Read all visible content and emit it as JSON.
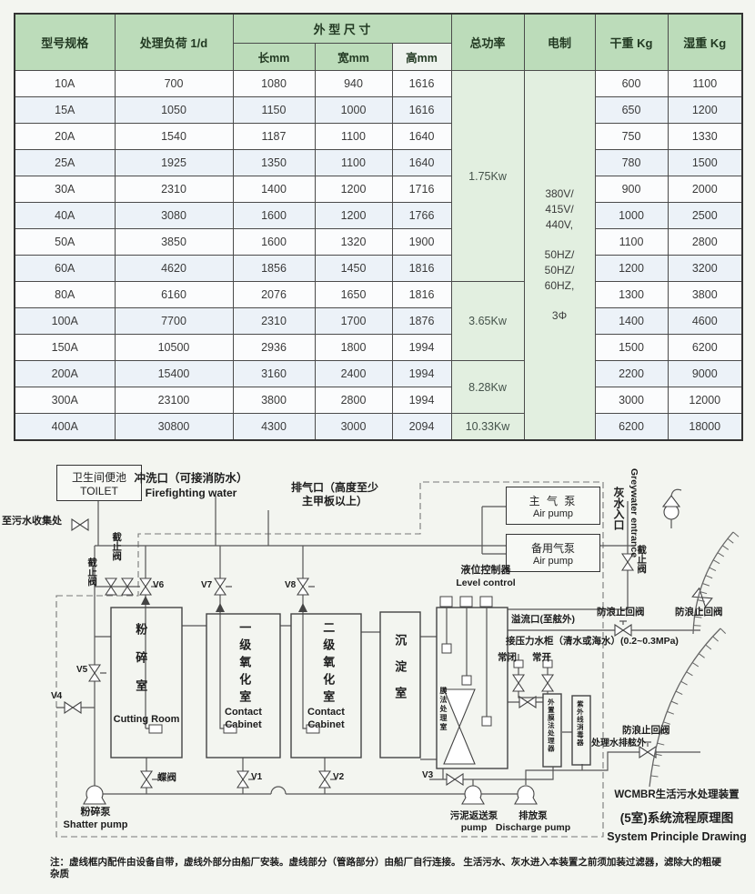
{
  "table": {
    "headers": {
      "model": "型号规格",
      "load": "处理负荷 1/d",
      "dims": "外 型 尺 寸",
      "len": "长mm",
      "wid": "宽mm",
      "hei": "高mm",
      "power": "总功率",
      "electric": "电制",
      "dry": "干重 Kg",
      "wet": "湿重 Kg"
    },
    "electric_text": "380V/\n415V/\n440V,\n\n50HZ/\n50HZ/\n60HZ,\n\n3Φ",
    "power_groups": [
      {
        "label": "1.75Kw",
        "rows": 8
      },
      {
        "label": "3.65Kw",
        "rows": 3
      },
      {
        "label": "8.28Kw",
        "rows": 2
      },
      {
        "label": "10.33Kw",
        "rows": 1
      }
    ],
    "rows": [
      [
        "10A",
        "700",
        "1080",
        "940",
        "1616",
        "600",
        "1100"
      ],
      [
        "15A",
        "1050",
        "1150",
        "1000",
        "1616",
        "650",
        "1200"
      ],
      [
        "20A",
        "1540",
        "1187",
        "1100",
        "1640",
        "750",
        "1330"
      ],
      [
        "25A",
        "1925",
        "1350",
        "1100",
        "1640",
        "780",
        "1500"
      ],
      [
        "30A",
        "2310",
        "1400",
        "1200",
        "1716",
        "900",
        "2000"
      ],
      [
        "40A",
        "3080",
        "1600",
        "1200",
        "1766",
        "1000",
        "2500"
      ],
      [
        "50A",
        "3850",
        "1600",
        "1320",
        "1900",
        "1100",
        "2800"
      ],
      [
        "60A",
        "4620",
        "1856",
        "1450",
        "1816",
        "1200",
        "3200"
      ],
      [
        "80A",
        "6160",
        "2076",
        "1650",
        "1816",
        "1300",
        "3800"
      ],
      [
        "100A",
        "7700",
        "2310",
        "1700",
        "1876",
        "1400",
        "4600"
      ],
      [
        "150A",
        "10500",
        "2936",
        "1800",
        "1994",
        "1500",
        "6200"
      ],
      [
        "200A",
        "15400",
        "3160",
        "2400",
        "1994",
        "2200",
        "9000"
      ],
      [
        "300A",
        "23100",
        "3800",
        "2800",
        "1994",
        "3000",
        "12000"
      ],
      [
        "400A",
        "30800",
        "4300",
        "3000",
        "2094",
        "6200",
        "18000"
      ]
    ]
  },
  "diagram": {
    "toilet_cn": "卫生间便池",
    "toilet_en": "TOILET",
    "firefighting_cn": "冲洗口（可接消防水）",
    "firefighting_en": "Firefighting water",
    "exhaust_l1": "排气口（高度至少",
    "exhaust_l2": "主甲板以上）",
    "air_main_cn": "主 气 泵",
    "air_main_en": "Air pump",
    "air_backup_cn": "备用气泵",
    "air_backup_en": "Air pump",
    "greywater_cn": "灰水入口",
    "greywater_en": "Greywater entrance",
    "sewage_cn": "至污水收集处",
    "stop_valve": "截止阀",
    "v1": "V1",
    "v2": "V2",
    "v3": "V3",
    "v4": "V4",
    "v5": "V5",
    "v6": "V6",
    "v7": "V7",
    "v8": "V8",
    "butterfly": "蝶阀",
    "tank1_cn": "粉碎室",
    "tank1_en": "Cutting Room",
    "tank2_cn": "一级氧化室",
    "tank2_en": "Contact Cabinet",
    "tank3_cn": "二级氧化室",
    "tank3_en": "Contact Cabinet",
    "tank4_cn": "沉淀室",
    "tank5_cn": "膜法处理室",
    "level_cn": "液位控制器",
    "level_en": "Level control",
    "overflow": "溢流口(至舷外)",
    "pressure": "接压力水柜（清水或海水）(0.2~0.3MPa)",
    "nc": "常闭",
    "no": "常开",
    "ext_membrane": "外置膜法处理器",
    "uv": "紫外线消毒器",
    "antiwave": "防浪止回阀",
    "treated": "处理水排舷外",
    "shatter_cn": "粉碎泵",
    "shatter_en": "Shatter pump",
    "sludge_cn": "污泥返送泵",
    "sludge_en": "pump",
    "discharge_cn": "排放泵",
    "discharge_en": "Discharge pump",
    "title1": "WCMBR生活污水处理装置",
    "title2": "(5室)系统流程原理图",
    "title3": "System Principle Drawing"
  },
  "note": "注：虚线框内配件由设备自带，虚线外部分由船厂安装。虚线部分（管路部分）由船厂自行连接。 生活污水、灰水进入本装置之前须加装过滤器，滤除大的粗硬杂质"
}
